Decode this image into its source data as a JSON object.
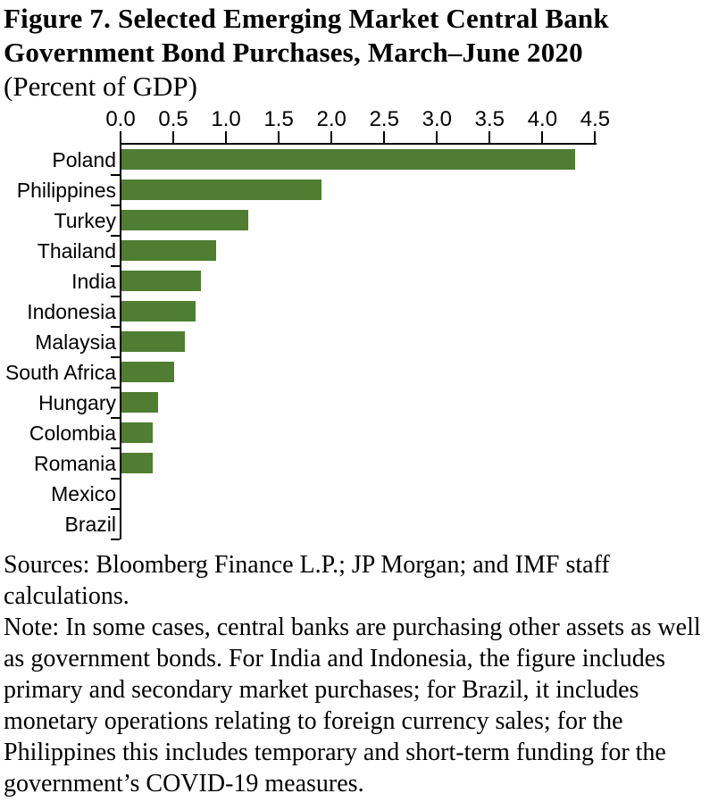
{
  "chart_data": {
    "type": "bar",
    "orientation": "horizontal",
    "title": "Figure 7. Selected Emerging Market Central Bank Government Bond Purchases, March–June 2020",
    "subtitle": "(Percent of GDP)",
    "categories": [
      "Poland",
      "Philippines",
      "Turkey",
      "Thailand",
      "India",
      "Indonesia",
      "Malaysia",
      "South Africa",
      "Hungary",
      "Colombia",
      "Romania",
      "Mexico",
      "Brazil"
    ],
    "values": [
      4.3,
      1.9,
      1.2,
      0.9,
      0.75,
      0.7,
      0.6,
      0.5,
      0.35,
      0.3,
      0.3,
      0.0,
      0.0
    ],
    "xlim": [
      0,
      4.5
    ],
    "x_ticks": [
      "0.0",
      "0.5",
      "1.0",
      "1.5",
      "2.0",
      "2.5",
      "3.0",
      "3.5",
      "4.0",
      "4.5"
    ],
    "grid": false,
    "legend": false,
    "axis_position": "top",
    "bar_color": "#4f7d32",
    "axis_color": "#000000"
  },
  "footer": {
    "source": "Sources: Bloomberg Finance L.P.; JP Morgan; and IMF staff calculations.",
    "note": "Note: In some cases, central banks are purchasing other assets as well as government bonds. For India and Indonesia, the figure includes primary and secondary market purchases; for Brazil, it includes monetary operations relating to foreign currency sales; for the Philippines this includes temporary and short-term funding for the government’s COVID-19 measures."
  },
  "colors": {
    "background": "#ffffff",
    "text": "#000000"
  }
}
